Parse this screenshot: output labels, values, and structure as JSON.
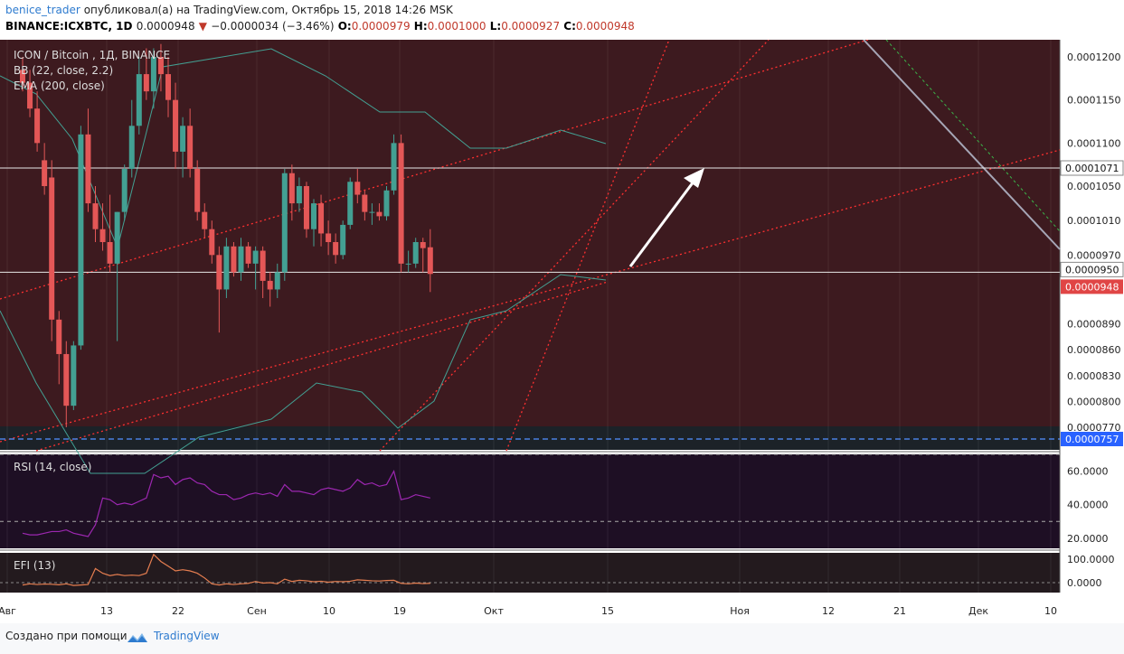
{
  "header": {
    "author": "benice_trader",
    "published_text": "опубликовал(а) на TradingView.com, Октябрь 15, 2018 14:26 MSK",
    "symbol": "BINANCE:ICXBTC, 1D",
    "last": "0.0000948",
    "change": "−0.0000034 (−3.46%)",
    "o_label": "O:",
    "o_value": "0.0000979",
    "h_label": "H:",
    "h_value": "0.0001000",
    "l_label": "L:",
    "l_value": "0.0000927",
    "c_label": "C:",
    "c_value": "0.0000948"
  },
  "legend": {
    "title": "ICON / Bitcoin , 1Д, BINANCE",
    "bb": "BB (22, close, 2.2)",
    "ema": "EMA (200, close)",
    "rsi": "RSI (14, close)",
    "efi": "EFI (13)"
  },
  "colors": {
    "background": "#3d1a1f",
    "pane_bg": "#1e0f24",
    "up": "#43a093",
    "down": "#e45757",
    "rsi": "#9c27b0",
    "efi": "#e67e50",
    "trend": "#ff3030",
    "price_tag": "#e04545",
    "support_tag": "#2962ff"
  },
  "footer": {
    "text": "Создано при помощи",
    "brand": "TradingView"
  },
  "chart_data": {
    "type": "candlestick",
    "title": "ICON / Bitcoin , 1Д, BINANCE",
    "price_axis_ticks": [
      "0.0001200",
      "0.0001150",
      "0.0001100",
      "0.0001050",
      "0.0001010",
      "0.0000970",
      "0.0000890",
      "0.0000860",
      "0.0000830",
      "0.0000800",
      "0.0000770"
    ],
    "price_tags": {
      "level_a": "0.0001071",
      "level_b": "0.0000950",
      "last": "0.0000948",
      "support": "0.0000757"
    },
    "rsi_ticks": [
      "60.0000",
      "40.0000",
      "20.0000"
    ],
    "efi_ticks": [
      "100.0000",
      "0.0000"
    ],
    "x_ticks": [
      "Авг",
      "13",
      "22",
      "Сен",
      "10",
      "19",
      "Окт",
      "15",
      "Ноя",
      "12",
      "21",
      "Дек",
      "10"
    ],
    "candles": [
      [
        0.0001185,
        0.00012,
        0.000116,
        0.000117
      ],
      [
        0.000117,
        0.0001185,
        0.000113,
        0.000114
      ],
      [
        0.000114,
        0.000116,
        0.000109,
        0.00011
      ],
      [
        0.000108,
        0.00011,
        0.000104,
        0.000105
      ],
      [
        0.000106,
        0.000108,
        8.7e-05,
        8.95e-05
      ],
      [
        8.95e-05,
        9.05e-05,
        8.2e-05,
        8.55e-05
      ],
      [
        8.55e-05,
        8.7e-05,
        7.7e-05,
        7.95e-05
      ],
      [
        7.95e-05,
        8.7e-05,
        7.9e-05,
        8.65e-05
      ],
      [
        8.65e-05,
        0.000112,
        8.6e-05,
        0.000111
      ],
      [
        0.000111,
        0.000114,
        0.000102,
        0.000103
      ],
      [
        0.000103,
        0.000105,
        9.85e-05,
        0.0001
      ],
      [
        0.0001,
        0.000103,
        9.75e-05,
        9.85e-05
      ],
      [
        9.85e-05,
        0.000104,
        9.5e-05,
        9.6e-05
      ],
      [
        9.6e-05,
        0.000102,
        8.7e-05,
        0.000102
      ],
      [
        0.000102,
        0.0001075,
        0.000101,
        0.000107
      ],
      [
        0.000107,
        0.000115,
        0.000106,
        0.000112
      ],
      [
        0.000112,
        0.00012,
        0.000111,
        0.000118
      ],
      [
        0.000118,
        0.000121,
        0.000115,
        0.000116
      ],
      [
        0.000116,
        0.000121,
        0.000114,
        0.00012
      ],
      [
        0.00012,
        0.0001215,
        0.000116,
        0.000118
      ],
      [
        0.000118,
        0.00012,
        0.000113,
        0.000115
      ],
      [
        0.000115,
        0.000117,
        0.000107,
        0.000109
      ],
      [
        0.000109,
        0.000113,
        0.000106,
        0.000112
      ],
      [
        0.000112,
        0.000114,
        0.000106,
        0.000107
      ],
      [
        0.000107,
        0.000108,
        0.000101,
        0.000102
      ],
      [
        0.000102,
        0.000103,
        9.9e-05,
        0.0001
      ],
      [
        0.0001,
        0.000101,
        9.6e-05,
        9.7e-05
      ],
      [
        9.7e-05,
        9.8e-05,
        8.8e-05,
        9.3e-05
      ],
      [
        9.3e-05,
        9.9e-05,
        9.2e-05,
        9.8e-05
      ],
      [
        9.8e-05,
        9.85e-05,
        9.45e-05,
        9.5e-05
      ],
      [
        9.5e-05,
        9.9e-05,
        9.4e-05,
        9.8e-05
      ],
      [
        9.8e-05,
        9.85e-05,
        9.55e-05,
        9.6e-05
      ],
      [
        9.6e-05,
        9.8e-05,
        9.3e-05,
        9.75e-05
      ],
      [
        9.75e-05,
        9.8e-05,
        9.2e-05,
        9.4e-05
      ],
      [
        9.4e-05,
        9.5e-05,
        9.1e-05,
        9.3e-05
      ],
      [
        9.3e-05,
        9.6e-05,
        9.2e-05,
        9.5e-05
      ],
      [
        9.5e-05,
        0.000107,
        9.4e-05,
        0.0001065
      ],
      [
        0.0001065,
        0.0001075,
        0.000101,
        0.000103
      ],
      [
        0.000103,
        0.000106,
        0.000102,
        0.000105
      ],
      [
        0.000105,
        0.0001055,
        9.9e-05,
        0.0001
      ],
      [
        0.0001,
        0.0001035,
        9.8e-05,
        0.000103
      ],
      [
        0.000103,
        0.000104,
        9.8e-05,
        9.95e-05
      ],
      [
        9.95e-05,
        0.000101,
        9.7e-05,
        9.85e-05
      ],
      [
        9.85e-05,
        9.95e-05,
        9.6e-05,
        9.7e-05
      ],
      [
        9.7e-05,
        0.000101,
        9.65e-05,
        0.0001005
      ],
      [
        0.0001005,
        0.000106,
        0.0001,
        0.0001055
      ],
      [
        0.0001055,
        0.000107,
        0.000103,
        0.000104
      ],
      [
        0.000104,
        0.0001045,
        0.000101,
        0.000102
      ],
      [
        0.000102,
        0.000103,
        0.0001005,
        0.000102
      ],
      [
        0.000102,
        0.000103,
        0.000101,
        0.0001015
      ],
      [
        0.0001015,
        0.000105,
        0.000101,
        0.0001045
      ],
      [
        0.0001045,
        0.000111,
        0.000104,
        0.00011
      ],
      [
        0.00011,
        0.000111,
        9.5e-05,
        9.6e-05
      ],
      [
        9.6e-05,
        9.75e-05,
        9.5e-05,
        9.6e-05
      ],
      [
        9.6e-05,
        9.9e-05,
        9.55e-05,
        9.85e-05
      ],
      [
        9.85e-05,
        9.9e-05,
        9.5e-05,
        9.78e-05
      ],
      [
        9.79e-05,
        0.0001,
        9.27e-05,
        9.48e-05
      ]
    ],
    "rsi": [
      23,
      22,
      22,
      23,
      24,
      24,
      25,
      23,
      22,
      21,
      28,
      44,
      43,
      40,
      41,
      40,
      42,
      44,
      58,
      56,
      57,
      52,
      55,
      56,
      53,
      52,
      48,
      46,
      46,
      43,
      44,
      46,
      47,
      46,
      47,
      45,
      52,
      48,
      48,
      47,
      46,
      49,
      50,
      49,
      48,
      50,
      55,
      52,
      53,
      51,
      52,
      60,
      43,
      44,
      46,
      45,
      44
    ],
    "efi": [
      -10,
      -5,
      -8,
      -6,
      -7,
      -9,
      -5,
      -12,
      -10,
      -8,
      60,
      40,
      30,
      35,
      30,
      32,
      30,
      40,
      120,
      90,
      70,
      50,
      55,
      50,
      40,
      20,
      -5,
      -10,
      -5,
      -8,
      -5,
      -3,
      5,
      -2,
      0,
      -5,
      15,
      5,
      10,
      8,
      4,
      6,
      2,
      5,
      4,
      6,
      12,
      10,
      8,
      7,
      9,
      10,
      -3,
      -5,
      -2,
      -4,
      -3
    ]
  }
}
